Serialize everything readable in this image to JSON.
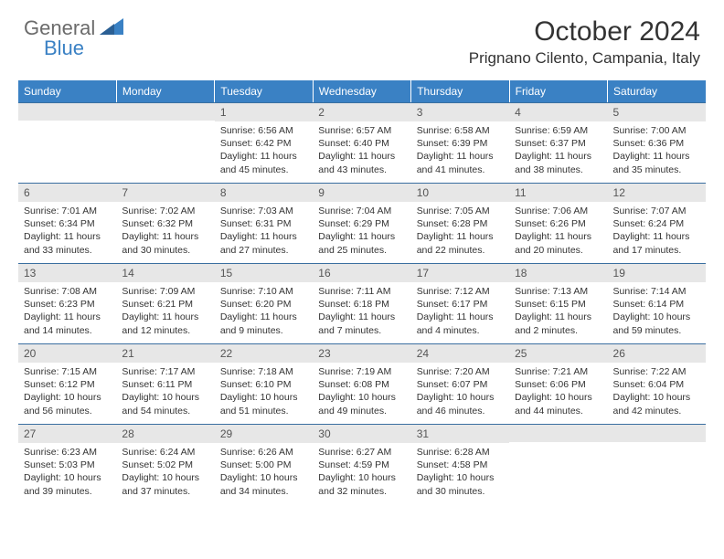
{
  "logo": {
    "text1": "General",
    "text2": "Blue"
  },
  "title": "October 2024",
  "location": "Prignano Cilento, Campania, Italy",
  "weekdays": [
    "Sunday",
    "Monday",
    "Tuesday",
    "Wednesday",
    "Thursday",
    "Friday",
    "Saturday"
  ],
  "colors": {
    "header_bg": "#3a81c4",
    "daybar_bg": "#e7e7e7",
    "logo_blue": "#3a81c4",
    "logo_gray": "#6b6b6b",
    "rule": "#3a6fa0"
  },
  "weeks": [
    [
      {
        "num": "",
        "sunrise": "",
        "sunset": "",
        "daylight": ""
      },
      {
        "num": "",
        "sunrise": "",
        "sunset": "",
        "daylight": ""
      },
      {
        "num": "1",
        "sunrise": "Sunrise: 6:56 AM",
        "sunset": "Sunset: 6:42 PM",
        "daylight": "Daylight: 11 hours and 45 minutes."
      },
      {
        "num": "2",
        "sunrise": "Sunrise: 6:57 AM",
        "sunset": "Sunset: 6:40 PM",
        "daylight": "Daylight: 11 hours and 43 minutes."
      },
      {
        "num": "3",
        "sunrise": "Sunrise: 6:58 AM",
        "sunset": "Sunset: 6:39 PM",
        "daylight": "Daylight: 11 hours and 41 minutes."
      },
      {
        "num": "4",
        "sunrise": "Sunrise: 6:59 AM",
        "sunset": "Sunset: 6:37 PM",
        "daylight": "Daylight: 11 hours and 38 minutes."
      },
      {
        "num": "5",
        "sunrise": "Sunrise: 7:00 AM",
        "sunset": "Sunset: 6:36 PM",
        "daylight": "Daylight: 11 hours and 35 minutes."
      }
    ],
    [
      {
        "num": "6",
        "sunrise": "Sunrise: 7:01 AM",
        "sunset": "Sunset: 6:34 PM",
        "daylight": "Daylight: 11 hours and 33 minutes."
      },
      {
        "num": "7",
        "sunrise": "Sunrise: 7:02 AM",
        "sunset": "Sunset: 6:32 PM",
        "daylight": "Daylight: 11 hours and 30 minutes."
      },
      {
        "num": "8",
        "sunrise": "Sunrise: 7:03 AM",
        "sunset": "Sunset: 6:31 PM",
        "daylight": "Daylight: 11 hours and 27 minutes."
      },
      {
        "num": "9",
        "sunrise": "Sunrise: 7:04 AM",
        "sunset": "Sunset: 6:29 PM",
        "daylight": "Daylight: 11 hours and 25 minutes."
      },
      {
        "num": "10",
        "sunrise": "Sunrise: 7:05 AM",
        "sunset": "Sunset: 6:28 PM",
        "daylight": "Daylight: 11 hours and 22 minutes."
      },
      {
        "num": "11",
        "sunrise": "Sunrise: 7:06 AM",
        "sunset": "Sunset: 6:26 PM",
        "daylight": "Daylight: 11 hours and 20 minutes."
      },
      {
        "num": "12",
        "sunrise": "Sunrise: 7:07 AM",
        "sunset": "Sunset: 6:24 PM",
        "daylight": "Daylight: 11 hours and 17 minutes."
      }
    ],
    [
      {
        "num": "13",
        "sunrise": "Sunrise: 7:08 AM",
        "sunset": "Sunset: 6:23 PM",
        "daylight": "Daylight: 11 hours and 14 minutes."
      },
      {
        "num": "14",
        "sunrise": "Sunrise: 7:09 AM",
        "sunset": "Sunset: 6:21 PM",
        "daylight": "Daylight: 11 hours and 12 minutes."
      },
      {
        "num": "15",
        "sunrise": "Sunrise: 7:10 AM",
        "sunset": "Sunset: 6:20 PM",
        "daylight": "Daylight: 11 hours and 9 minutes."
      },
      {
        "num": "16",
        "sunrise": "Sunrise: 7:11 AM",
        "sunset": "Sunset: 6:18 PM",
        "daylight": "Daylight: 11 hours and 7 minutes."
      },
      {
        "num": "17",
        "sunrise": "Sunrise: 7:12 AM",
        "sunset": "Sunset: 6:17 PM",
        "daylight": "Daylight: 11 hours and 4 minutes."
      },
      {
        "num": "18",
        "sunrise": "Sunrise: 7:13 AM",
        "sunset": "Sunset: 6:15 PM",
        "daylight": "Daylight: 11 hours and 2 minutes."
      },
      {
        "num": "19",
        "sunrise": "Sunrise: 7:14 AM",
        "sunset": "Sunset: 6:14 PM",
        "daylight": "Daylight: 10 hours and 59 minutes."
      }
    ],
    [
      {
        "num": "20",
        "sunrise": "Sunrise: 7:15 AM",
        "sunset": "Sunset: 6:12 PM",
        "daylight": "Daylight: 10 hours and 56 minutes."
      },
      {
        "num": "21",
        "sunrise": "Sunrise: 7:17 AM",
        "sunset": "Sunset: 6:11 PM",
        "daylight": "Daylight: 10 hours and 54 minutes."
      },
      {
        "num": "22",
        "sunrise": "Sunrise: 7:18 AM",
        "sunset": "Sunset: 6:10 PM",
        "daylight": "Daylight: 10 hours and 51 minutes."
      },
      {
        "num": "23",
        "sunrise": "Sunrise: 7:19 AM",
        "sunset": "Sunset: 6:08 PM",
        "daylight": "Daylight: 10 hours and 49 minutes."
      },
      {
        "num": "24",
        "sunrise": "Sunrise: 7:20 AM",
        "sunset": "Sunset: 6:07 PM",
        "daylight": "Daylight: 10 hours and 46 minutes."
      },
      {
        "num": "25",
        "sunrise": "Sunrise: 7:21 AM",
        "sunset": "Sunset: 6:06 PM",
        "daylight": "Daylight: 10 hours and 44 minutes."
      },
      {
        "num": "26",
        "sunrise": "Sunrise: 7:22 AM",
        "sunset": "Sunset: 6:04 PM",
        "daylight": "Daylight: 10 hours and 42 minutes."
      }
    ],
    [
      {
        "num": "27",
        "sunrise": "Sunrise: 6:23 AM",
        "sunset": "Sunset: 5:03 PM",
        "daylight": "Daylight: 10 hours and 39 minutes."
      },
      {
        "num": "28",
        "sunrise": "Sunrise: 6:24 AM",
        "sunset": "Sunset: 5:02 PM",
        "daylight": "Daylight: 10 hours and 37 minutes."
      },
      {
        "num": "29",
        "sunrise": "Sunrise: 6:26 AM",
        "sunset": "Sunset: 5:00 PM",
        "daylight": "Daylight: 10 hours and 34 minutes."
      },
      {
        "num": "30",
        "sunrise": "Sunrise: 6:27 AM",
        "sunset": "Sunset: 4:59 PM",
        "daylight": "Daylight: 10 hours and 32 minutes."
      },
      {
        "num": "31",
        "sunrise": "Sunrise: 6:28 AM",
        "sunset": "Sunset: 4:58 PM",
        "daylight": "Daylight: 10 hours and 30 minutes."
      },
      {
        "num": "",
        "sunrise": "",
        "sunset": "",
        "daylight": ""
      },
      {
        "num": "",
        "sunrise": "",
        "sunset": "",
        "daylight": ""
      }
    ]
  ]
}
